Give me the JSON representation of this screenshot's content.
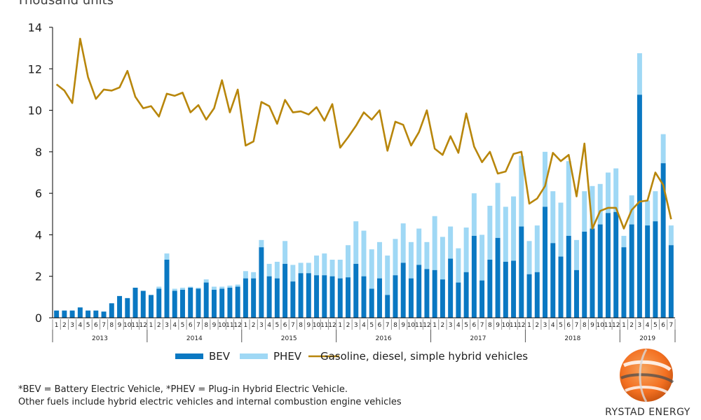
{
  "chart_data": {
    "type": "bar",
    "subtitle": "Thousand units",
    "ylim": [
      0,
      14
    ],
    "yticks": [
      0,
      2,
      4,
      6,
      8,
      10,
      12,
      14
    ],
    "grid": false,
    "legend_position": "bottom",
    "month_labels": [
      "1",
      "2",
      "3",
      "4",
      "5",
      "6",
      "7",
      "8",
      "9",
      "10",
      "11",
      "12",
      "1",
      "2",
      "3",
      "4",
      "5",
      "6",
      "7",
      "8",
      "9",
      "10",
      "11",
      "12",
      "1",
      "2",
      "3",
      "4",
      "5",
      "6",
      "7",
      "8",
      "9",
      "10",
      "11",
      "12",
      "1",
      "2",
      "3",
      "4",
      "5",
      "6",
      "7",
      "8",
      "9",
      "10",
      "11",
      "12",
      "1",
      "2",
      "3",
      "4",
      "5",
      "6",
      "7",
      "8",
      "9",
      "10",
      "11",
      "12",
      "1",
      "2",
      "3",
      "4",
      "5",
      "6",
      "7",
      "8",
      "9",
      "10",
      "11",
      "12",
      "1",
      "2",
      "3",
      "4",
      "5",
      "6",
      "7"
    ],
    "years": [
      {
        "label": "2013",
        "months": 12
      },
      {
        "label": "2014",
        "months": 12
      },
      {
        "label": "2015",
        "months": 12
      },
      {
        "label": "2016",
        "months": 12
      },
      {
        "label": "2017",
        "months": 12
      },
      {
        "label": "2018",
        "months": 12
      },
      {
        "label": "2019",
        "months": 7
      }
    ],
    "series": [
      {
        "name": "BEV",
        "type": "bar",
        "color": "#0a78c2",
        "values": [
          0.35,
          0.35,
          0.35,
          0.5,
          0.35,
          0.35,
          0.3,
          0.7,
          1.05,
          0.95,
          1.45,
          1.3,
          1.1,
          1.4,
          2.8,
          1.3,
          1.35,
          1.45,
          1.4,
          1.7,
          1.35,
          1.4,
          1.45,
          1.5,
          1.9,
          1.9,
          3.4,
          2.0,
          1.9,
          2.6,
          1.75,
          2.15,
          2.15,
          2.05,
          2.05,
          2.0,
          1.9,
          1.95,
          2.6,
          2.0,
          1.4,
          1.9,
          1.1,
          2.05,
          2.65,
          1.9,
          2.55,
          2.35,
          2.3,
          1.85,
          2.85,
          1.7,
          2.2,
          3.95,
          1.8,
          2.8,
          3.85,
          2.7,
          2.75,
          4.4,
          2.1,
          2.2,
          5.35,
          3.6,
          2.95,
          3.95,
          2.3,
          4.15,
          4.3,
          4.5,
          5.05,
          5.1,
          3.4,
          4.5,
          10.75,
          4.45,
          4.65,
          7.45,
          3.5
        ]
      },
      {
        "name": "PHEV",
        "type": "bar",
        "color": "#9fd8f5",
        "stacked_on": "BEV",
        "values": [
          0,
          0,
          0,
          0,
          0,
          0,
          0,
          0,
          0,
          0,
          0,
          0,
          0,
          0.1,
          0.3,
          0.1,
          0.1,
          0.05,
          0.05,
          0.15,
          0.15,
          0.1,
          0.1,
          0.1,
          0.35,
          0.3,
          0.35,
          0.6,
          0.8,
          1.1,
          0.8,
          0.5,
          0.5,
          0.95,
          1.05,
          0.8,
          0.9,
          1.55,
          2.05,
          2.2,
          1.9,
          1.75,
          1.9,
          1.75,
          1.9,
          1.75,
          1.75,
          1.3,
          2.6,
          2.05,
          1.55,
          1.65,
          2.15,
          2.05,
          2.2,
          2.6,
          2.65,
          2.65,
          3.1,
          3.4,
          1.6,
          2.25,
          2.65,
          2.5,
          2.6,
          3.6,
          1.45,
          1.95,
          2.05,
          1.95,
          1.95,
          2.1,
          0.55,
          1.4,
          2.0,
          1.2,
          1.45,
          1.4,
          0.95
        ]
      },
      {
        "name": "Gasoline, diesel, simple hybrid vehicles",
        "type": "line",
        "color": "#b8860b",
        "values": [
          11.25,
          10.95,
          10.35,
          13.45,
          11.6,
          10.55,
          11.0,
          10.95,
          11.1,
          11.9,
          10.65,
          10.1,
          10.2,
          9.7,
          10.8,
          10.7,
          10.85,
          9.9,
          10.25,
          9.55,
          10.1,
          11.45,
          9.9,
          11.0,
          8.3,
          8.5,
          10.4,
          10.2,
          9.35,
          10.5,
          9.9,
          9.95,
          9.8,
          10.15,
          9.5,
          10.3,
          8.2,
          8.7,
          9.25,
          9.9,
          9.55,
          10.0,
          8.05,
          9.45,
          9.3,
          8.3,
          8.95,
          10.0,
          8.15,
          7.85,
          8.75,
          7.95,
          9.85,
          8.25,
          7.5,
          8.0,
          6.95,
          7.05,
          7.9,
          8.0,
          5.5,
          5.75,
          6.35,
          7.95,
          7.55,
          7.85,
          5.85,
          8.4,
          4.3,
          5.15,
          5.3,
          5.3,
          4.3,
          5.2,
          5.6,
          5.65,
          7.0,
          6.4,
          4.75
        ]
      }
    ]
  },
  "footnote": {
    "line1": "*BEV = Battery Electric Vehicle, *PHEV = Plug-in Hybrid Electric Vehicle.",
    "line2": "Other fuels include hybrid electric vehicles and internal combustion engine vehicles"
  },
  "logo": {
    "text": "RYSTAD ENERGY",
    "colors": {
      "orange": "#f37021",
      "dark": "#4d4d4d",
      "light": "#d9d9d9"
    }
  }
}
